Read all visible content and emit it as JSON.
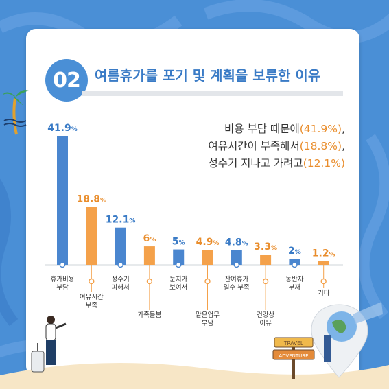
{
  "header": {
    "number": "02",
    "title": "여름휴가를 포기 및 계획을 보류한 이유"
  },
  "summary": {
    "lines": [
      {
        "text": "비용 부담 때문에",
        "pct": "(41.9%)",
        "suffix": ","
      },
      {
        "text": "여유시간이 부족해서",
        "pct": "(18.8%)",
        "suffix": ","
      },
      {
        "text": "성수기 지나고 가려고",
        "pct": "(12.1%)",
        "suffix": ""
      }
    ]
  },
  "sign": {
    "top": "TRAVEL",
    "bottom": "ADVENTURE"
  },
  "colors": {
    "blue": "#4a86cf",
    "orange": "#f4a14a",
    "blue_text": "#3a7bc6",
    "orange_text": "#e98d2c"
  },
  "chart_data": {
    "type": "bar",
    "categories": [
      [
        "휴가비용",
        "부담"
      ],
      [
        "여유시간",
        "부족"
      ],
      [
        "성수기",
        "피해서"
      ],
      [
        "가족돌봄"
      ],
      [
        "눈치가",
        "보여서"
      ],
      [
        "맡은업무",
        "부담"
      ],
      [
        "잔여휴가",
        "일수 부족"
      ],
      [
        "건강상",
        "이유"
      ],
      [
        "동반자",
        "부재"
      ],
      [
        "기타"
      ]
    ],
    "values": [
      41.9,
      18.8,
      12.1,
      6,
      5,
      4.9,
      4.8,
      3.3,
      2,
      1.2
    ],
    "value_labels": [
      "41.9",
      "18.8",
      "12.1",
      "6",
      "5",
      "4.9",
      "4.8",
      "3.3",
      "2",
      "1.2"
    ],
    "unit": "%",
    "bar_colors": [
      "blue",
      "orange",
      "blue",
      "orange",
      "blue",
      "orange",
      "blue",
      "orange",
      "blue",
      "orange"
    ],
    "label_position": [
      "below",
      "low",
      "below",
      "low",
      "below",
      "low",
      "below",
      "low",
      "below",
      "low"
    ],
    "ylim": [
      0,
      41.9
    ]
  }
}
